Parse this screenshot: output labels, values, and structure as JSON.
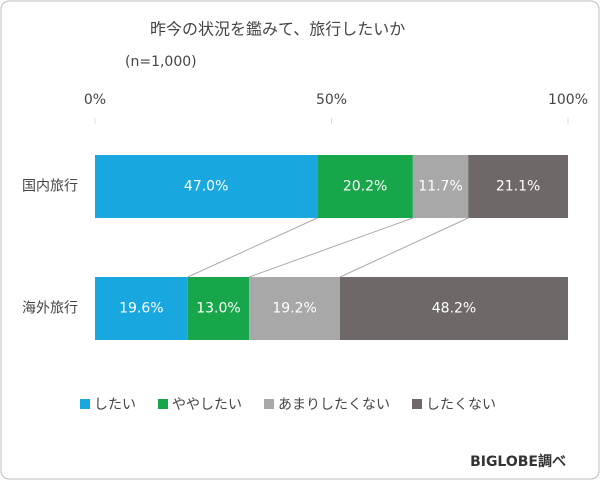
{
  "chart_data": {
    "type": "stacked_bar_horizontal",
    "title": "昨今の状況を鑑みて、旅行したいか",
    "subtitle": "(n=1,000)",
    "source": "BIGLOBE調べ",
    "categories": [
      "国内旅行",
      "海外旅行"
    ],
    "series": [
      {
        "name": "したい",
        "color": "#19a7e0",
        "values": [
          47.0,
          19.6
        ],
        "value_labels": [
          "47.0%",
          "19.6%"
        ]
      },
      {
        "name": "ややしたい",
        "color": "#18a64b",
        "values": [
          20.2,
          13.0
        ],
        "value_labels": [
          "20.2%",
          "13.0%"
        ]
      },
      {
        "name": "あまりしたくない",
        "color": "#a9a8a8",
        "values": [
          11.7,
          19.2
        ],
        "value_labels": [
          "11.7%",
          "19.2%"
        ]
      },
      {
        "name": "したくない",
        "color": "#6e6868",
        "values": [
          21.1,
          48.2
        ],
        "value_labels": [
          "21.1%",
          "48.2%"
        ]
      }
    ],
    "xlim": [
      0,
      100
    ],
    "xticks": [
      {
        "value": 0,
        "label": "0%"
      },
      {
        "value": 50,
        "label": "50%"
      },
      {
        "value": 100,
        "label": "100%"
      }
    ],
    "legend": "bottom"
  }
}
